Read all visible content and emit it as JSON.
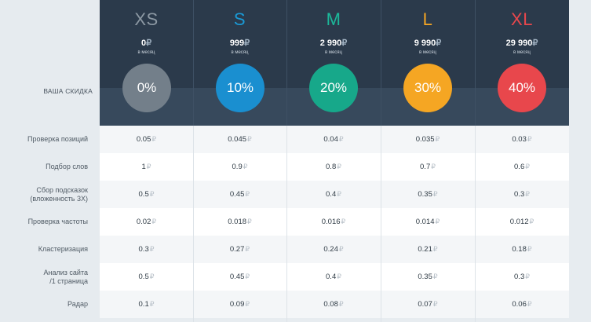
{
  "discount_label": "ВАША СКИДКА",
  "currency": "₽",
  "plans": [
    {
      "name": "XS",
      "price": "0",
      "period": "в месяц",
      "discount": "0%",
      "name_color": "#8c98a3",
      "circle_color": "#737f8a"
    },
    {
      "name": "S",
      "price": "999",
      "period": "в месяц",
      "discount": "10%",
      "name_color": "#1a9ad6",
      "circle_color": "#1a8fd0"
    },
    {
      "name": "M",
      "price": "2 990",
      "period": "в месяц",
      "discount": "20%",
      "name_color": "#1cb89a",
      "circle_color": "#17a88a"
    },
    {
      "name": "L",
      "price": "9 990",
      "period": "в месяц",
      "discount": "30%",
      "name_color": "#f5a623",
      "circle_color": "#f5a623"
    },
    {
      "name": "XL",
      "price": "29 990",
      "period": "в месяц",
      "discount": "40%",
      "name_color": "#e8474c",
      "circle_color": "#e8474c"
    }
  ],
  "rows": [
    {
      "label": [
        "Проверка позиций"
      ],
      "values": [
        "0.05",
        "0.045",
        "0.04",
        "0.035",
        "0.03"
      ]
    },
    {
      "label": [
        "Подбор слов"
      ],
      "values": [
        "1",
        "0.9",
        "0.8",
        "0.7",
        "0.6"
      ]
    },
    {
      "label": [
        "Сбор подсказок",
        "(вложенность 3Х)"
      ],
      "values": [
        "0.5",
        "0.45",
        "0.4",
        "0.35",
        "0.3"
      ]
    },
    {
      "label": [
        "Проверка частоты"
      ],
      "values": [
        "0.02",
        "0.018",
        "0.016",
        "0.014",
        "0.012"
      ]
    },
    {
      "label": [
        "Кластеризация"
      ],
      "values": [
        "0.3",
        "0.27",
        "0.24",
        "0.21",
        "0.18"
      ]
    },
    {
      "label": [
        "Анализ сайта",
        "/1 страница"
      ],
      "values": [
        "0.5",
        "0.45",
        "0.4",
        "0.35",
        "0.3"
      ]
    },
    {
      "label": [
        "Радар"
      ],
      "values": [
        "0.1",
        "0.09",
        "0.08",
        "0.07",
        "0.06"
      ]
    }
  ]
}
